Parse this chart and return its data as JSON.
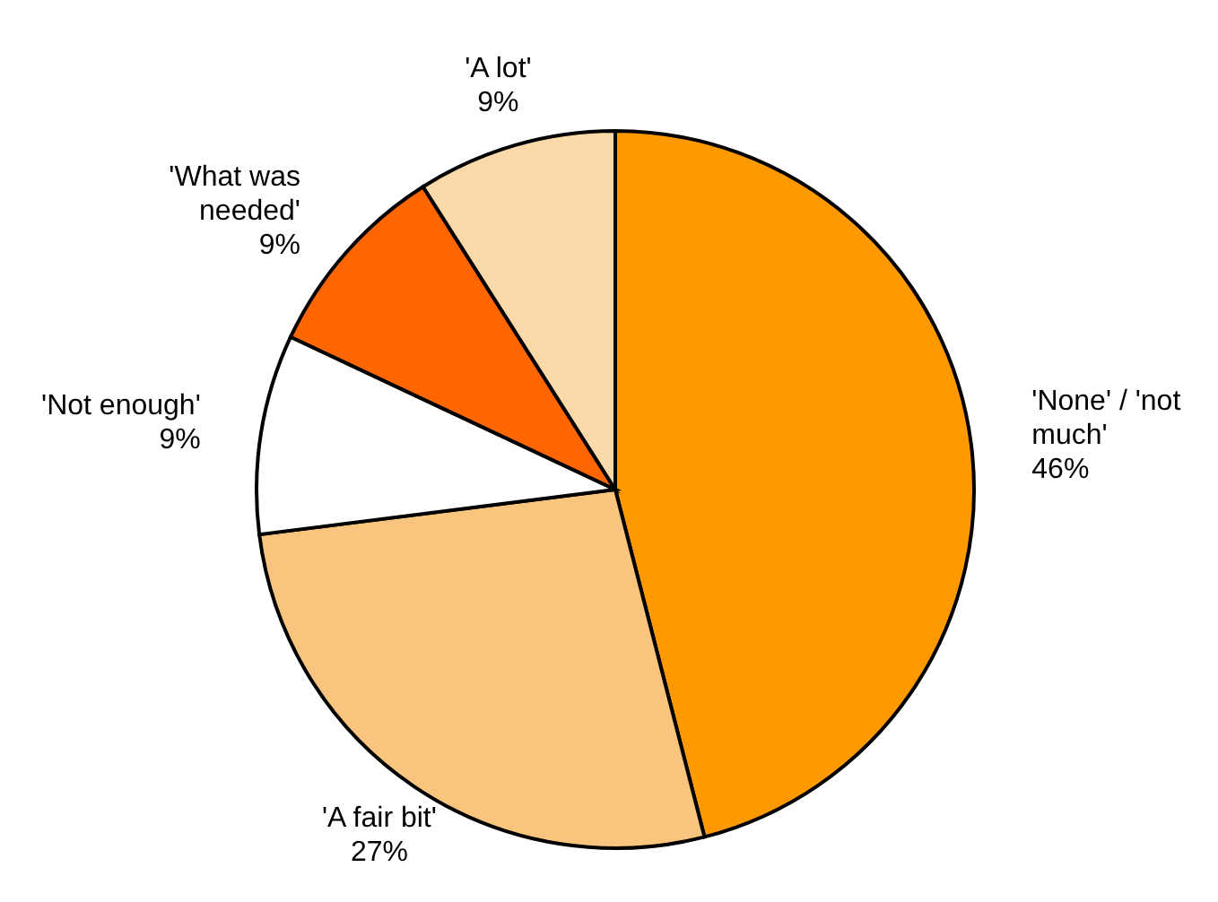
{
  "chart_data": {
    "type": "pie",
    "categories": [
      "'None' / 'not much'",
      "'A fair bit'",
      "'Not enough'",
      "'What was needed'",
      "'A lot'"
    ],
    "values": [
      46,
      27,
      9,
      9,
      9
    ],
    "colors": [
      "#ff9900",
      "#f9c47e",
      "#ffffff",
      "#ff6600",
      "#fcd9a8"
    ],
    "value_labels": [
      "46%",
      "27%",
      "9%",
      "9%",
      "9%"
    ],
    "legend": false
  }
}
